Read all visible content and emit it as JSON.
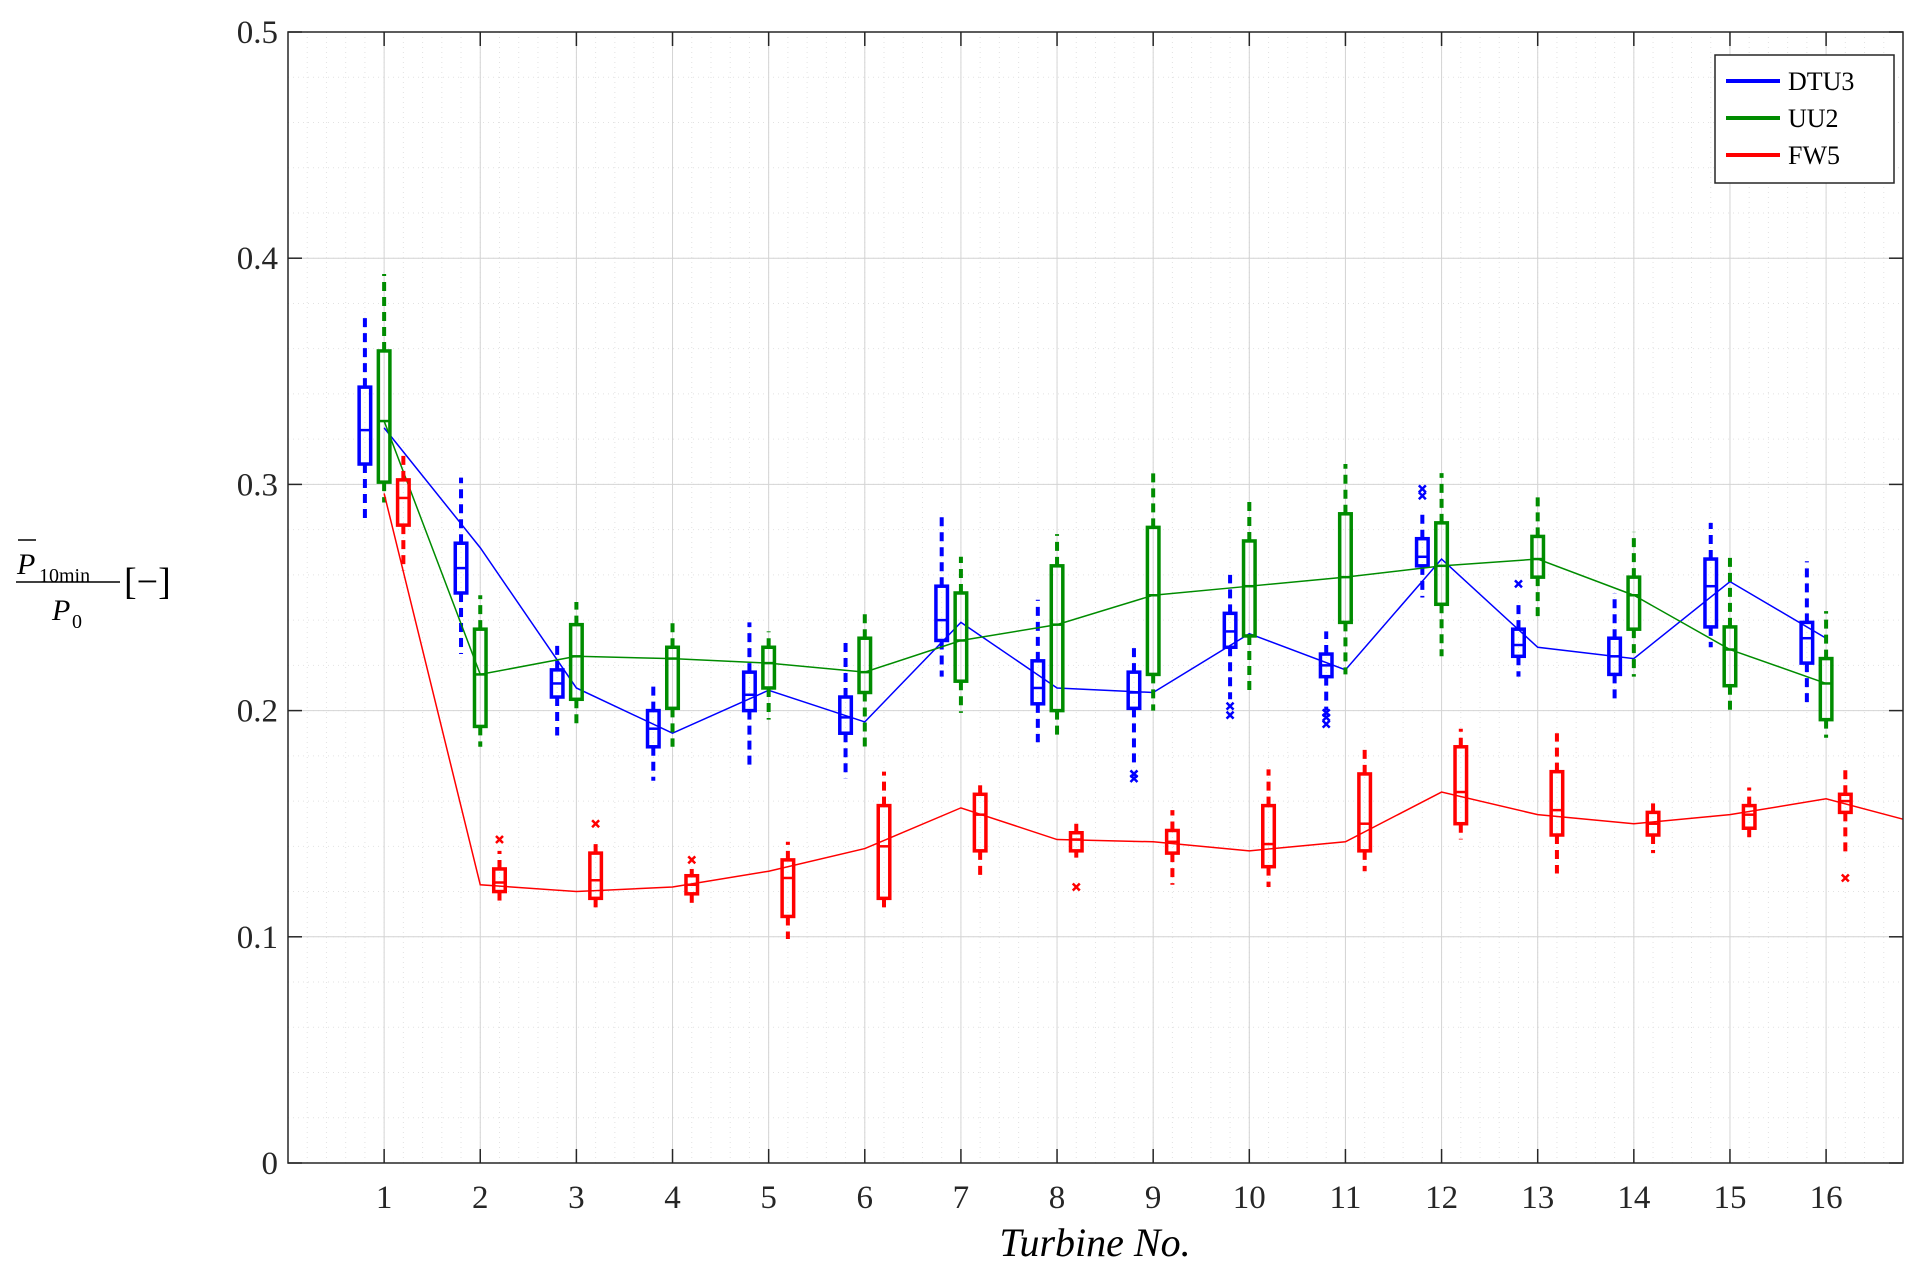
{
  "chart_data": {
    "type": "box",
    "xlabel": "Turbine No.",
    "ylabel": {
      "numerator_main": "P",
      "numerator_sub": "10min",
      "denominator_main": "P",
      "denominator_sub": "0",
      "unit": "[−]"
    },
    "ylim": [
      0,
      0.5
    ],
    "yticks": [
      0,
      0.1,
      0.2,
      0.3,
      0.4,
      0.5
    ],
    "ytick_labels": [
      "0",
      "0.1",
      "0.2",
      "0.3",
      "0.4",
      "0.5"
    ],
    "xlim": [
      0,
      16.8
    ],
    "categories": [
      1,
      2,
      3,
      4,
      5,
      6,
      7,
      8,
      9,
      10,
      11,
      12,
      13,
      14,
      15,
      16
    ],
    "xtick_labels": [
      "1",
      "2",
      "3",
      "4",
      "5",
      "6",
      "7",
      "8",
      "9",
      "10",
      "11",
      "12",
      "13",
      "14",
      "15",
      "16"
    ],
    "grid": true,
    "minor_grid": true,
    "legend": "top-right",
    "series": [
      {
        "name": "DTU3",
        "color": "#0000ff",
        "mean_line": [
          0.325,
          0.272,
          0.21,
          0.19,
          0.209,
          0.195,
          0.239,
          0.21,
          0.208,
          0.234,
          0.218,
          0.267,
          0.228,
          0.223,
          0.257,
          0.232
        ],
        "boxes": [
          {
            "whisker_low": 0.284,
            "q1": 0.309,
            "median": 0.324,
            "q3": 0.343,
            "whisker_high": 0.374,
            "outliers": []
          },
          {
            "whisker_low": 0.225,
            "q1": 0.252,
            "median": 0.263,
            "q3": 0.274,
            "whisker_high": 0.303,
            "outliers": []
          },
          {
            "whisker_low": 0.189,
            "q1": 0.206,
            "median": 0.212,
            "q3": 0.218,
            "whisker_high": 0.23,
            "outliers": []
          },
          {
            "whisker_low": 0.169,
            "q1": 0.184,
            "median": 0.192,
            "q3": 0.2,
            "whisker_high": 0.212,
            "outliers": []
          },
          {
            "whisker_low": 0.174,
            "q1": 0.2,
            "median": 0.207,
            "q3": 0.217,
            "whisker_high": 0.239,
            "outliers": []
          },
          {
            "whisker_low": 0.17,
            "q1": 0.19,
            "median": 0.197,
            "q3": 0.206,
            "whisker_high": 0.231,
            "outliers": []
          },
          {
            "whisker_low": 0.215,
            "q1": 0.231,
            "median": 0.24,
            "q3": 0.255,
            "whisker_high": 0.286,
            "outliers": []
          },
          {
            "whisker_low": 0.186,
            "q1": 0.203,
            "median": 0.21,
            "q3": 0.222,
            "whisker_high": 0.249,
            "outliers": []
          },
          {
            "whisker_low": 0.175,
            "q1": 0.201,
            "median": 0.208,
            "q3": 0.217,
            "whisker_high": 0.228,
            "outliers": [
              0.17,
              0.172
            ]
          },
          {
            "whisker_low": 0.205,
            "q1": 0.228,
            "median": 0.235,
            "q3": 0.243,
            "whisker_high": 0.26,
            "outliers": [
              0.198,
              0.202
            ]
          },
          {
            "whisker_low": 0.2,
            "q1": 0.215,
            "median": 0.22,
            "q3": 0.225,
            "whisker_high": 0.235,
            "outliers": [
              0.194,
              0.197,
              0.199
            ]
          },
          {
            "whisker_low": 0.25,
            "q1": 0.264,
            "median": 0.268,
            "q3": 0.276,
            "whisker_high": 0.287,
            "outliers": [
              0.295,
              0.298
            ]
          },
          {
            "whisker_low": 0.215,
            "q1": 0.224,
            "median": 0.229,
            "q3": 0.236,
            "whisker_high": 0.248,
            "outliers": [
              0.256
            ]
          },
          {
            "whisker_low": 0.204,
            "q1": 0.216,
            "median": 0.224,
            "q3": 0.232,
            "whisker_high": 0.252,
            "outliers": []
          },
          {
            "whisker_low": 0.228,
            "q1": 0.237,
            "median": 0.255,
            "q3": 0.267,
            "whisker_high": 0.283,
            "outliers": []
          },
          {
            "whisker_low": 0.203,
            "q1": 0.221,
            "median": 0.232,
            "q3": 0.239,
            "whisker_high": 0.266,
            "outliers": []
          }
        ]
      },
      {
        "name": "UU2",
        "color": "#008c00",
        "mean_line": [
          0.328,
          0.216,
          0.224,
          0.223,
          0.221,
          0.217,
          0.231,
          0.238,
          0.251,
          0.255,
          0.259,
          0.264,
          0.267,
          0.251,
          0.227,
          0.212
        ],
        "boxes": [
          {
            "whisker_low": 0.292,
            "q1": 0.301,
            "median": 0.328,
            "q3": 0.359,
            "whisker_high": 0.393,
            "outliers": []
          },
          {
            "whisker_low": 0.184,
            "q1": 0.193,
            "median": 0.216,
            "q3": 0.236,
            "whisker_high": 0.251,
            "outliers": []
          },
          {
            "whisker_low": 0.193,
            "q1": 0.205,
            "median": 0.224,
            "q3": 0.238,
            "whisker_high": 0.248,
            "outliers": []
          },
          {
            "whisker_low": 0.184,
            "q1": 0.201,
            "median": 0.223,
            "q3": 0.228,
            "whisker_high": 0.241,
            "outliers": []
          },
          {
            "whisker_low": 0.196,
            "q1": 0.21,
            "median": 0.221,
            "q3": 0.228,
            "whisker_high": 0.235,
            "outliers": []
          },
          {
            "whisker_low": 0.182,
            "q1": 0.208,
            "median": 0.217,
            "q3": 0.232,
            "whisker_high": 0.243,
            "outliers": []
          },
          {
            "whisker_low": 0.199,
            "q1": 0.213,
            "median": 0.231,
            "q3": 0.252,
            "whisker_high": 0.268,
            "outliers": []
          },
          {
            "whisker_low": 0.188,
            "q1": 0.2,
            "median": 0.238,
            "q3": 0.264,
            "whisker_high": 0.278,
            "outliers": []
          },
          {
            "whisker_low": 0.2,
            "q1": 0.216,
            "median": 0.251,
            "q3": 0.281,
            "whisker_high": 0.307,
            "outliers": []
          },
          {
            "whisker_low": 0.207,
            "q1": 0.233,
            "median": 0.255,
            "q3": 0.275,
            "whisker_high": 0.294,
            "outliers": []
          },
          {
            "whisker_low": 0.216,
            "q1": 0.239,
            "median": 0.259,
            "q3": 0.287,
            "whisker_high": 0.309,
            "outliers": []
          },
          {
            "whisker_low": 0.224,
            "q1": 0.247,
            "median": 0.264,
            "q3": 0.283,
            "whisker_high": 0.305,
            "outliers": []
          },
          {
            "whisker_low": 0.241,
            "q1": 0.259,
            "median": 0.267,
            "q3": 0.277,
            "whisker_high": 0.296,
            "outliers": []
          },
          {
            "whisker_low": 0.215,
            "q1": 0.236,
            "median": 0.251,
            "q3": 0.259,
            "whisker_high": 0.279,
            "outliers": []
          },
          {
            "whisker_low": 0.199,
            "q1": 0.211,
            "median": 0.227,
            "q3": 0.237,
            "whisker_high": 0.27,
            "outliers": []
          },
          {
            "whisker_low": 0.188,
            "q1": 0.196,
            "median": 0.212,
            "q3": 0.223,
            "whisker_high": 0.244,
            "outliers": []
          }
        ]
      },
      {
        "name": "FW5",
        "color": "#ff0000",
        "mean_line": [
          0.296,
          0.123,
          0.12,
          0.122,
          0.129,
          0.139,
          0.157,
          0.143,
          0.142,
          0.138,
          0.142,
          0.164,
          0.154,
          0.15,
          0.154,
          0.161,
          0.152
        ],
        "mean_line_x": [
          1,
          2,
          3,
          4,
          5,
          6,
          7,
          8,
          9,
          10,
          11,
          12,
          13,
          14,
          15,
          16,
          16.8
        ],
        "boxes": [
          {
            "whisker_low": 0.262,
            "q1": 0.282,
            "median": 0.294,
            "q3": 0.302,
            "whisker_high": 0.313,
            "outliers": []
          },
          {
            "whisker_low": 0.116,
            "q1": 0.12,
            "median": 0.124,
            "q3": 0.13,
            "whisker_high": 0.138,
            "outliers": [
              0.143
            ]
          },
          {
            "whisker_low": 0.113,
            "q1": 0.117,
            "median": 0.125,
            "q3": 0.137,
            "whisker_high": 0.143,
            "outliers": [
              0.15
            ]
          },
          {
            "whisker_low": 0.115,
            "q1": 0.119,
            "median": 0.123,
            "q3": 0.127,
            "whisker_high": 0.13,
            "outliers": [
              0.134
            ]
          },
          {
            "whisker_low": 0.099,
            "q1": 0.109,
            "median": 0.126,
            "q3": 0.134,
            "whisker_high": 0.142,
            "outliers": []
          },
          {
            "whisker_low": 0.111,
            "q1": 0.117,
            "median": 0.14,
            "q3": 0.158,
            "whisker_high": 0.173,
            "outliers": []
          },
          {
            "whisker_low": 0.125,
            "q1": 0.138,
            "median": 0.154,
            "q3": 0.163,
            "whisker_high": 0.167,
            "outliers": []
          },
          {
            "whisker_low": 0.135,
            "q1": 0.138,
            "median": 0.143,
            "q3": 0.146,
            "whisker_high": 0.151,
            "outliers": [
              0.122
            ]
          },
          {
            "whisker_low": 0.123,
            "q1": 0.137,
            "median": 0.142,
            "q3": 0.147,
            "whisker_high": 0.156,
            "outliers": []
          },
          {
            "whisker_low": 0.122,
            "q1": 0.131,
            "median": 0.141,
            "q3": 0.158,
            "whisker_high": 0.174,
            "outliers": []
          },
          {
            "whisker_low": 0.129,
            "q1": 0.138,
            "median": 0.15,
            "q3": 0.172,
            "whisker_high": 0.184,
            "outliers": []
          },
          {
            "whisker_low": 0.143,
            "q1": 0.15,
            "median": 0.164,
            "q3": 0.184,
            "whisker_high": 0.192,
            "outliers": []
          },
          {
            "whisker_low": 0.128,
            "q1": 0.145,
            "median": 0.156,
            "q3": 0.173,
            "whisker_high": 0.19,
            "outliers": []
          },
          {
            "whisker_low": 0.137,
            "q1": 0.145,
            "median": 0.15,
            "q3": 0.155,
            "whisker_high": 0.161,
            "outliers": []
          },
          {
            "whisker_low": 0.144,
            "q1": 0.148,
            "median": 0.154,
            "q3": 0.158,
            "whisker_high": 0.166,
            "outliers": []
          },
          {
            "whisker_low": 0.137,
            "q1": 0.155,
            "median": 0.16,
            "q3": 0.163,
            "whisker_high": 0.174,
            "outliers": [
              0.126
            ]
          }
        ]
      }
    ]
  }
}
